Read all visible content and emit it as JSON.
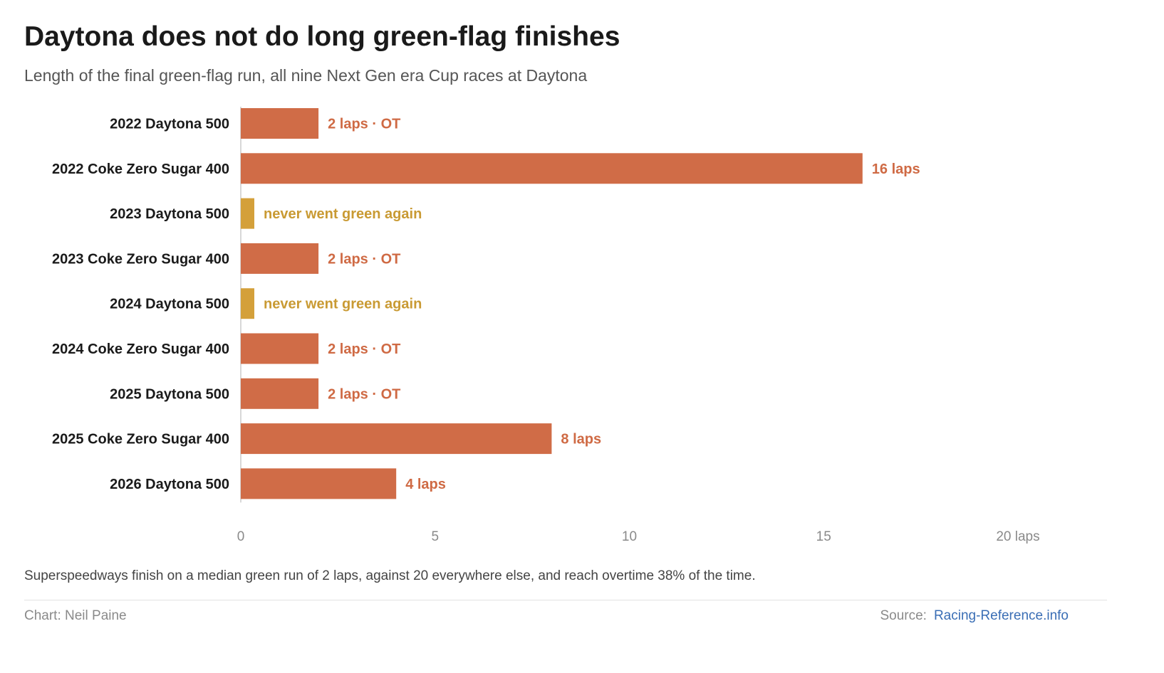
{
  "header": {
    "title": "Daytona does not do long green-flag finishes",
    "subtitle": "Length of the final green-flag run, all nine Next Gen era Cup races at Daytona"
  },
  "colors": {
    "bar": "#d06c47",
    "never_green": "#d4a03a",
    "label_default": "#cf6a44",
    "label_never_green": "#c99a33",
    "axis_line": "#cccccc",
    "tick_text": "#8a8a8a",
    "source_link": "#3a6eb5"
  },
  "chart_data": {
    "type": "bar",
    "orientation": "horizontal",
    "categories": [
      "2022 Daytona 500",
      "2022 Coke Zero Sugar 400",
      "2023 Daytona 500",
      "2023 Coke Zero Sugar 400",
      "2024 Daytona 500",
      "2024 Coke Zero Sugar 400",
      "2025 Daytona 500",
      "2025 Coke Zero Sugar 400",
      "2026 Daytona 500"
    ],
    "values": [
      2,
      16,
      0,
      2,
      0,
      2,
      2,
      8,
      4
    ],
    "data_labels": [
      "2 laps · OT",
      "16 laps",
      "never went green again",
      "2 laps · OT",
      "never went green again",
      "2 laps · OT",
      "2 laps · OT",
      "8 laps",
      "4 laps"
    ],
    "never_went_green": [
      false,
      false,
      true,
      false,
      true,
      false,
      false,
      false,
      false
    ],
    "xlim": [
      0,
      20
    ],
    "ticks": [
      0,
      5,
      10,
      15,
      20
    ],
    "tick_labels": [
      "0",
      "5",
      "10",
      "15",
      "20 laps"
    ],
    "grid": false
  },
  "note": "Superspeedways finish on a median green run of 2 laps, against 20 everywhere else, and reach overtime 38% of the time.",
  "footer": {
    "credit": "Chart: Neil Paine",
    "source_label": "Source:",
    "source_link": "Racing-Reference.info"
  }
}
